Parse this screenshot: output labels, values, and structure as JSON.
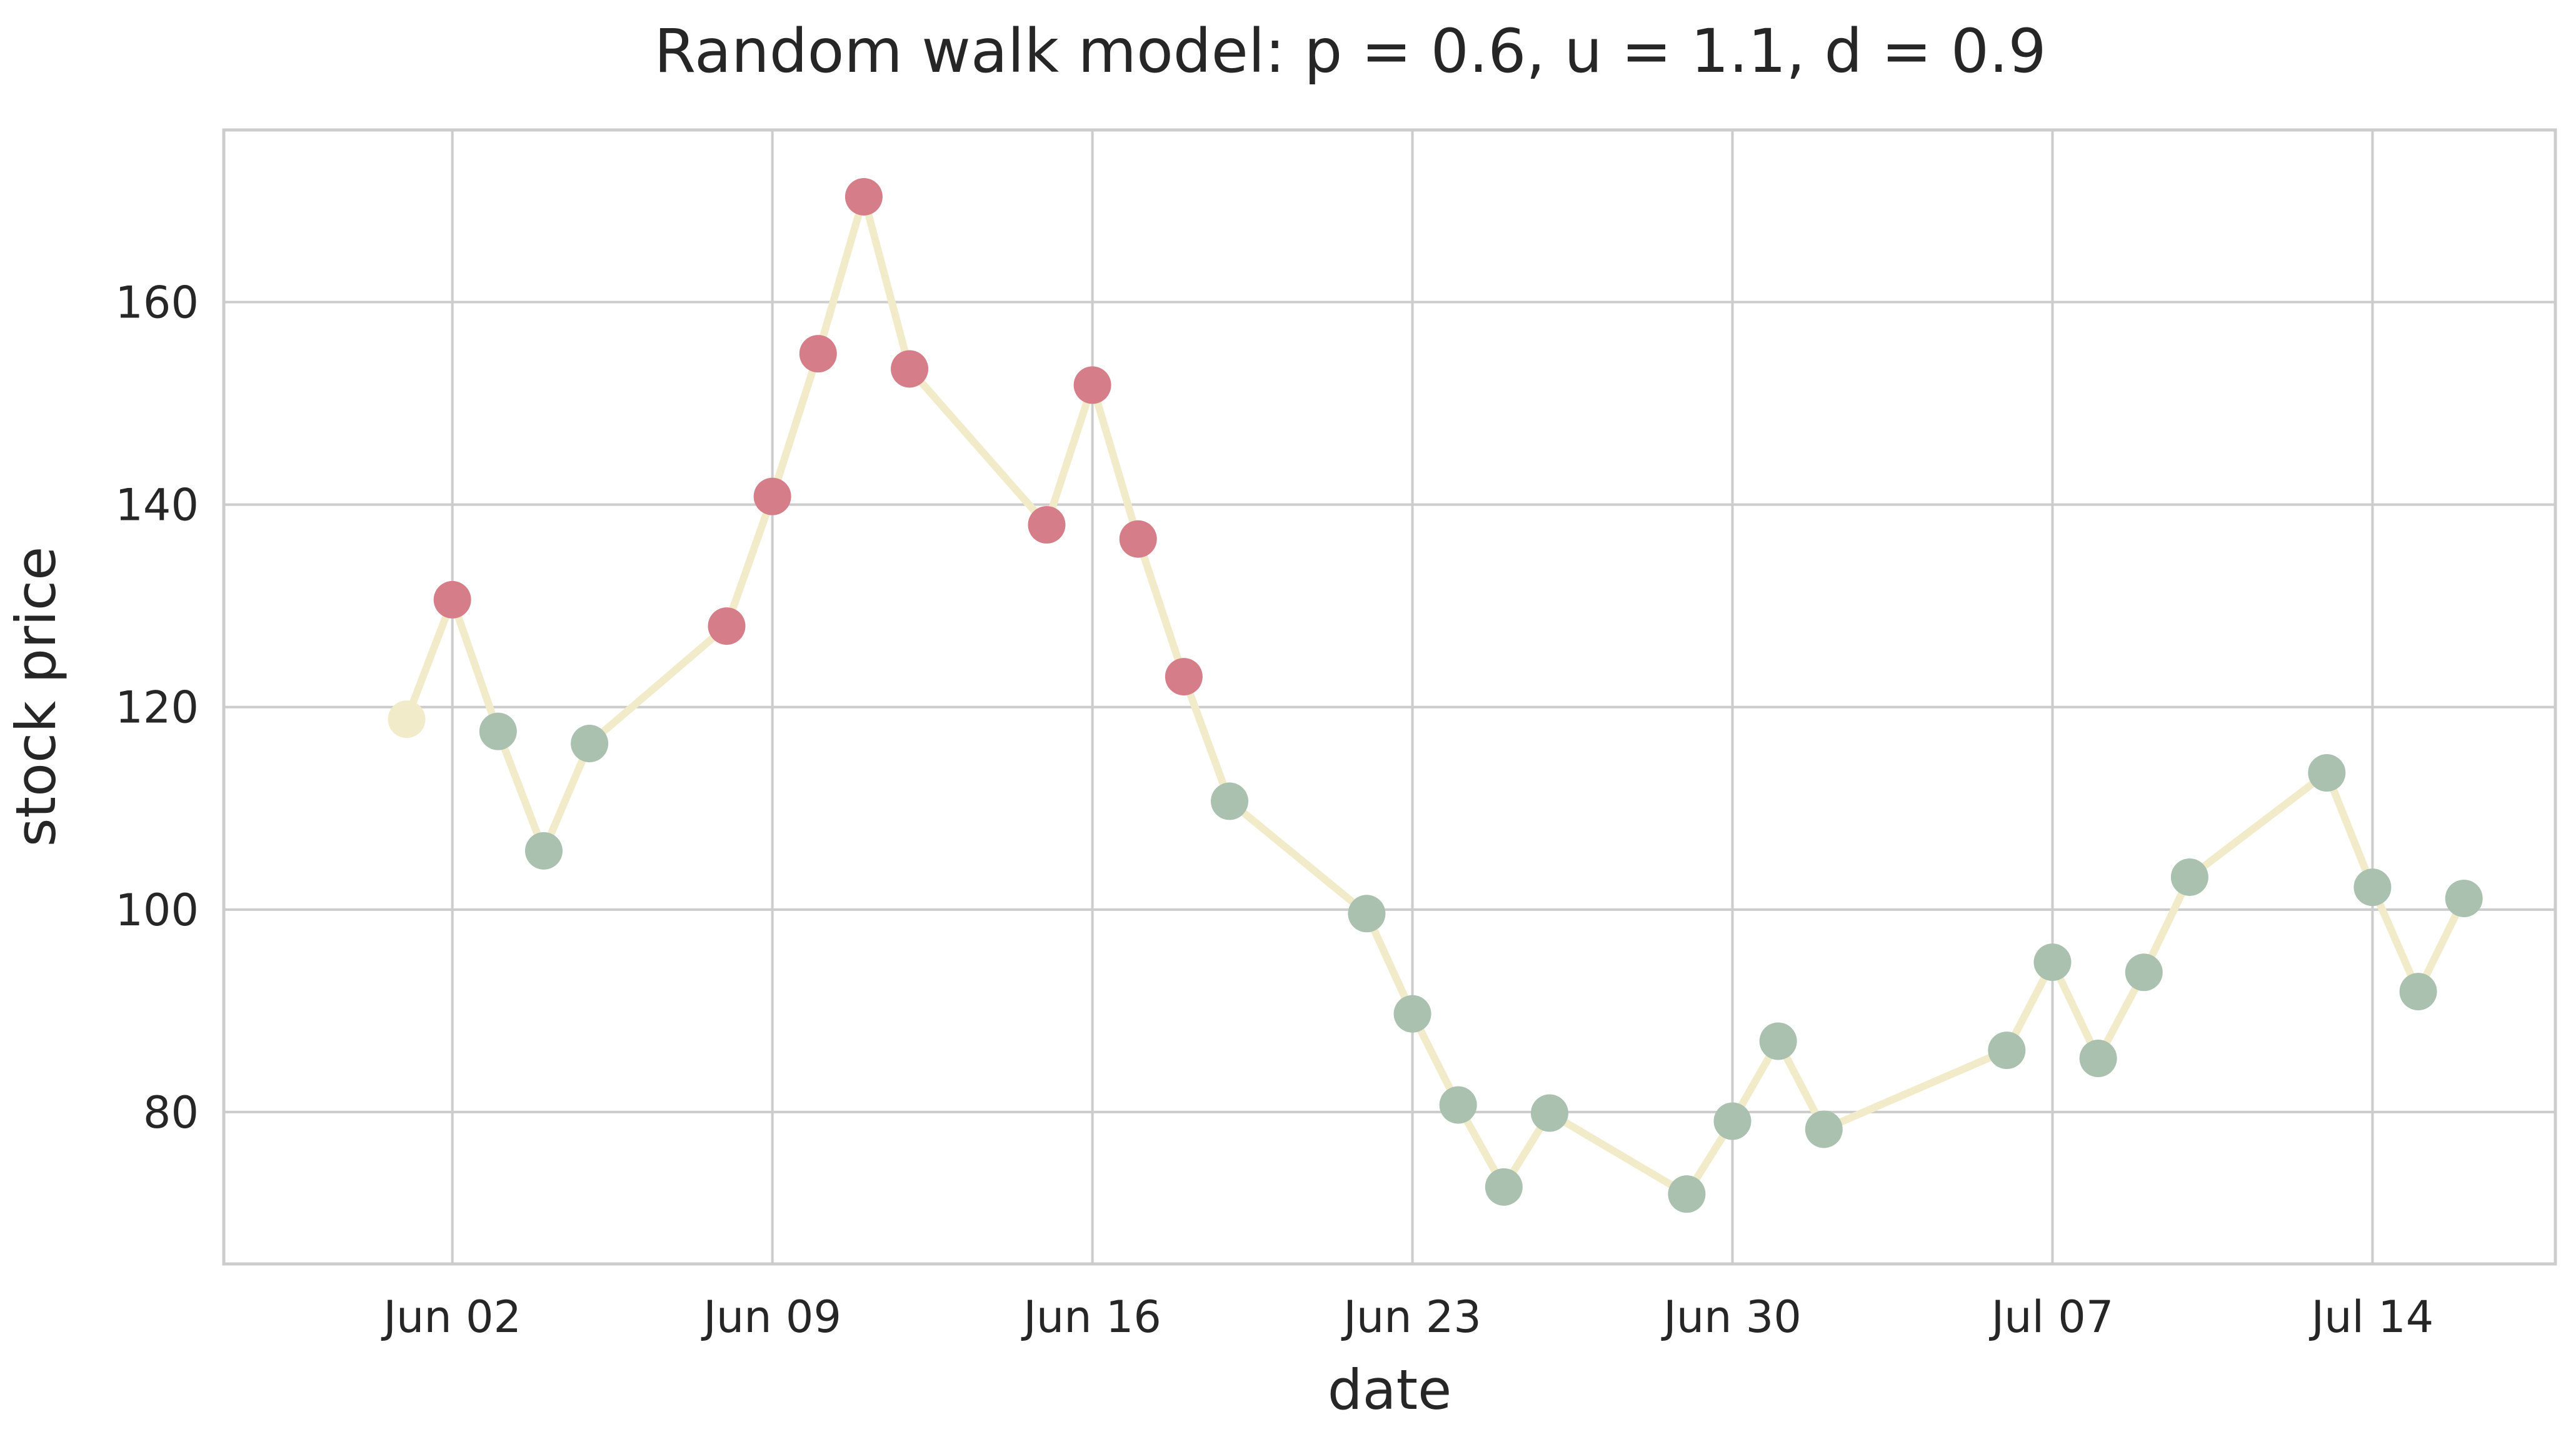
{
  "chart_data": {
    "type": "line",
    "title": "Random walk model: p = 0.6, u = 1.1, d = 0.9",
    "xlabel": "date",
    "ylabel": "stock price",
    "grid": true,
    "x_axis_type": "date",
    "xlim": [
      "2024-05-28",
      "2024-07-18"
    ],
    "ylim": [
      65,
      177
    ],
    "x_ticks": [
      {
        "date": "2024-06-02",
        "label": "Jun 02"
      },
      {
        "date": "2024-06-09",
        "label": "Jun 09"
      },
      {
        "date": "2024-06-16",
        "label": "Jun 16"
      },
      {
        "date": "2024-06-23",
        "label": "Jun 23"
      },
      {
        "date": "2024-06-30",
        "label": "Jun 30"
      },
      {
        "date": "2024-07-07",
        "label": "Jul 07"
      },
      {
        "date": "2024-07-14",
        "label": "Jul 14"
      }
    ],
    "y_ticks": [
      {
        "value": 80,
        "label": "80"
      },
      {
        "value": 100,
        "label": "100"
      },
      {
        "value": 120,
        "label": "120"
      },
      {
        "value": 140,
        "label": "140"
      },
      {
        "value": 160,
        "label": "160"
      }
    ],
    "colors": {
      "line": "#f2ebc9",
      "start": "#f2ebc9",
      "above_start": "#d67d8a",
      "below_start": "#a9c1ae"
    },
    "series": [
      {
        "points": [
          {
            "date": "2024-06-01",
            "value": 118.8,
            "group": "start"
          },
          {
            "date": "2024-06-02",
            "value": 130.6,
            "group": "above_start"
          },
          {
            "date": "2024-06-03",
            "value": 117.6,
            "group": "below_start"
          },
          {
            "date": "2024-06-04",
            "value": 105.8,
            "group": "below_start"
          },
          {
            "date": "2024-06-05",
            "value": 116.4,
            "group": "below_start"
          },
          {
            "date": "2024-06-08",
            "value": 128.0,
            "group": "above_start"
          },
          {
            "date": "2024-06-09",
            "value": 140.8,
            "group": "above_start"
          },
          {
            "date": "2024-06-10",
            "value": 154.9,
            "group": "above_start"
          },
          {
            "date": "2024-06-11",
            "value": 170.4,
            "group": "above_start"
          },
          {
            "date": "2024-06-12",
            "value": 153.4,
            "group": "above_start"
          },
          {
            "date": "2024-06-15",
            "value": 138.0,
            "group": "above_start"
          },
          {
            "date": "2024-06-16",
            "value": 151.8,
            "group": "above_start"
          },
          {
            "date": "2024-06-17",
            "value": 136.6,
            "group": "above_start"
          },
          {
            "date": "2024-06-18",
            "value": 123.0,
            "group": "above_start"
          },
          {
            "date": "2024-06-19",
            "value": 110.7,
            "group": "below_start"
          },
          {
            "date": "2024-06-22",
            "value": 99.6,
            "group": "below_start"
          },
          {
            "date": "2024-06-23",
            "value": 89.7,
            "group": "below_start"
          },
          {
            "date": "2024-06-24",
            "value": 80.7,
            "group": "below_start"
          },
          {
            "date": "2024-06-25",
            "value": 72.6,
            "group": "below_start"
          },
          {
            "date": "2024-06-26",
            "value": 79.9,
            "group": "below_start"
          },
          {
            "date": "2024-06-29",
            "value": 71.9,
            "group": "below_start"
          },
          {
            "date": "2024-06-30",
            "value": 79.1,
            "group": "below_start"
          },
          {
            "date": "2024-07-01",
            "value": 87.0,
            "group": "below_start"
          },
          {
            "date": "2024-07-02",
            "value": 78.3,
            "group": "below_start"
          },
          {
            "date": "2024-07-06",
            "value": 86.1,
            "group": "below_start"
          },
          {
            "date": "2024-07-07",
            "value": 94.8,
            "group": "below_start"
          },
          {
            "date": "2024-07-08",
            "value": 85.3,
            "group": "below_start"
          },
          {
            "date": "2024-07-09",
            "value": 93.8,
            "group": "below_start"
          },
          {
            "date": "2024-07-10",
            "value": 103.2,
            "group": "below_start"
          },
          {
            "date": "2024-07-13",
            "value": 113.5,
            "group": "below_start"
          },
          {
            "date": "2024-07-14",
            "value": 102.2,
            "group": "below_start"
          },
          {
            "date": "2024-07-15",
            "value": 91.9,
            "group": "below_start"
          },
          {
            "date": "2024-07-16",
            "value": 101.1,
            "group": "below_start"
          }
        ]
      }
    ]
  }
}
